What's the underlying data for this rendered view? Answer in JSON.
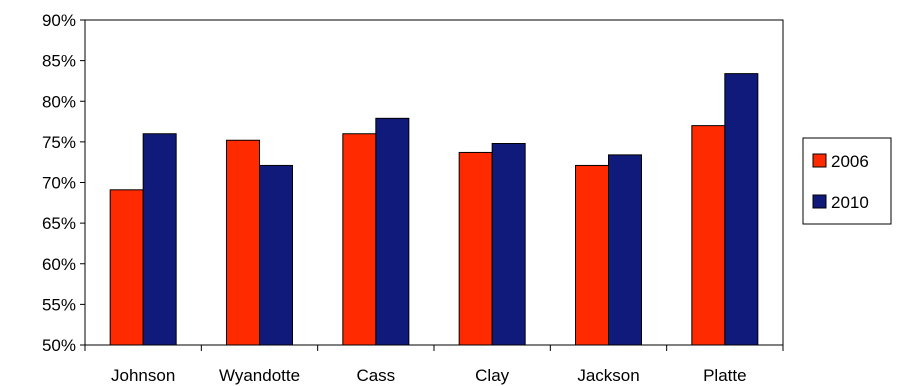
{
  "chart_data": {
    "type": "bar",
    "title": "",
    "xlabel": "",
    "ylabel": "",
    "categories": [
      "Johnson",
      "Wyandotte",
      "Cass",
      "Clay",
      "Jackson",
      "Platte"
    ],
    "series": [
      {
        "name": "2006",
        "color": "#ff2a00",
        "values": [
          69.1,
          75.2,
          76.0,
          73.7,
          72.1,
          77.0
        ]
      },
      {
        "name": "2010",
        "color": "#0f1a7a",
        "values": [
          76.0,
          72.1,
          77.9,
          74.8,
          73.4,
          83.4
        ]
      }
    ],
    "ylim": [
      50,
      90
    ],
    "yticks": [
      "50%",
      "55%",
      "60%",
      "65%",
      "70%",
      "75%",
      "80%",
      "85%",
      "90%"
    ],
    "ytick_values": [
      50,
      55,
      60,
      65,
      70,
      75,
      80,
      85,
      90
    ],
    "grid": false,
    "legend_position": "right"
  }
}
